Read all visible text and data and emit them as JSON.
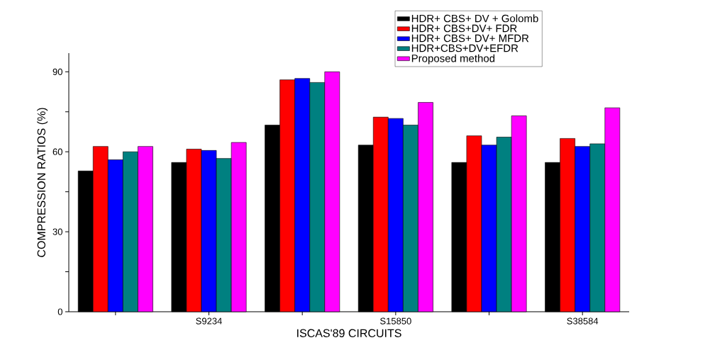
{
  "chart_data": {
    "type": "bar",
    "xlabel": "ISCAS'89 CIRCUITS",
    "ylabel": "COMPRESSION RATIOS (%)",
    "categories": [
      null,
      "S9234",
      null,
      "S15850",
      null,
      "S38584"
    ],
    "series": [
      {
        "name": "HDR+ CBS+ DV  + Golomb",
        "color": "#000000",
        "values": [
          52.8,
          56,
          70,
          62.5,
          56,
          56
        ]
      },
      {
        "name": "HDR+ CBS+DV+ FDR",
        "color": "#ff0000",
        "values": [
          62,
          61,
          87,
          73,
          66,
          65
        ]
      },
      {
        "name": "HDR+ CBS+ DV+ MFDR",
        "color": "#0000ff",
        "values": [
          57,
          60.5,
          87.5,
          72.5,
          62.5,
          62
        ]
      },
      {
        "name": "HDR+CBS+DV+EFDR",
        "color": "#008080",
        "values": [
          60,
          57.5,
          86,
          70,
          65.5,
          63
        ]
      },
      {
        "name": "Proposed method",
        "color": "#ff00ff",
        "values": [
          62,
          63.5,
          90,
          78.5,
          73.5,
          76.5
        ]
      }
    ],
    "ylim": [
      0,
      97
    ],
    "yticks": [
      0,
      {
        "value": 15,
        "label": null
      },
      30,
      {
        "value": 45,
        "label": null
      },
      60,
      {
        "value": 75,
        "label": null
      },
      90
    ],
    "legend": "top right"
  }
}
